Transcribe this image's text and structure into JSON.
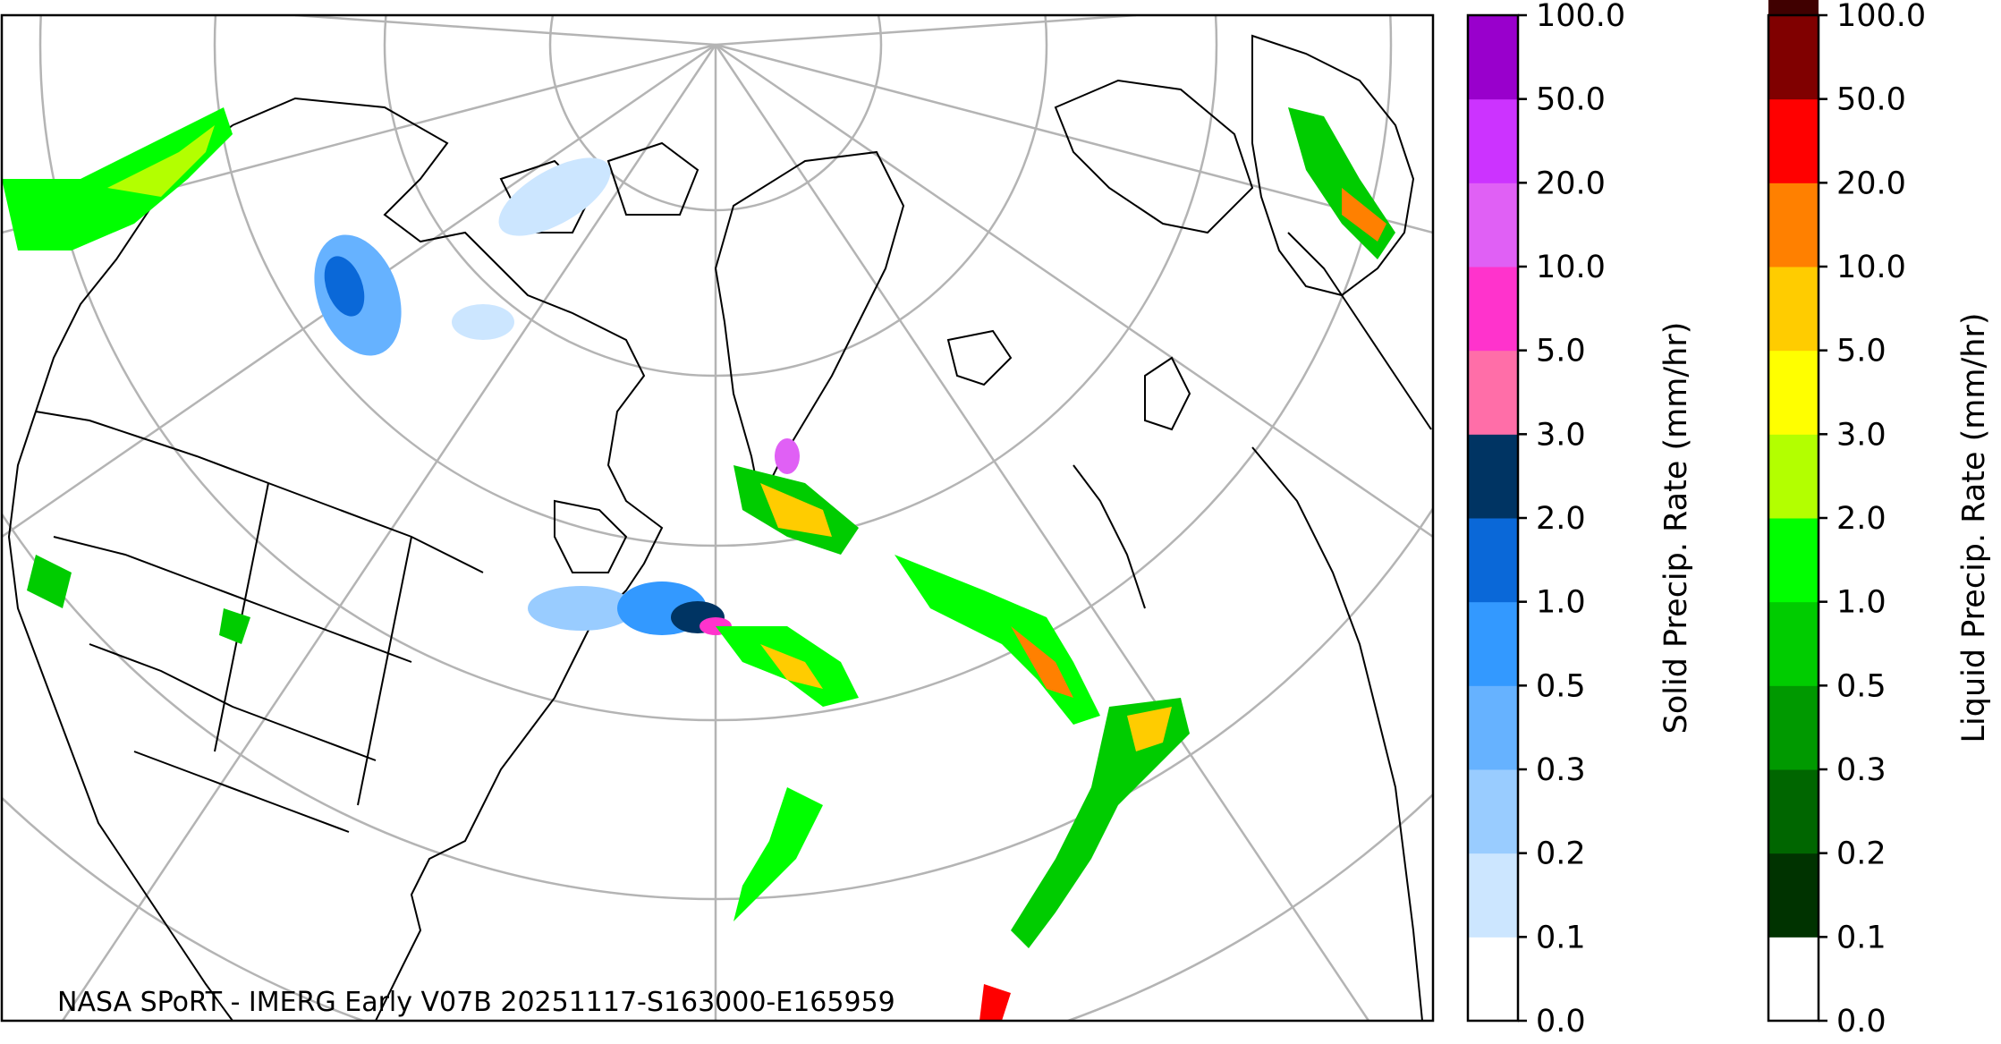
{
  "map": {
    "credit": "NASA SPoRT - IMERG Early V07B 20251117-S163000-E165959",
    "graticule_color": "#b4b4b4",
    "coastline_color": "#000000"
  },
  "solid_colorbar": {
    "label": "Solid Precip. Rate (mm/hr)",
    "ticks": [
      "0.0",
      "0.1",
      "0.2",
      "0.3",
      "0.5",
      "1.0",
      "2.0",
      "3.0",
      "5.0",
      "10.0",
      "20.0",
      "50.0",
      "100.0"
    ],
    "colors": [
      "#ffffff",
      "#cce6ff",
      "#99ccff",
      "#66b2ff",
      "#3399ff",
      "#0a68d8",
      "#003463",
      "#ff6ea8",
      "#ff33cc",
      "#e060f5",
      "#cc33ff",
      "#9900cc"
    ]
  },
  "liquid_colorbar": {
    "label": "Liquid Precip. Rate (mm/hr)",
    "ticks": [
      "0.0",
      "0.1",
      "0.2",
      "0.3",
      "0.5",
      "1.0",
      "2.0",
      "3.0",
      "5.0",
      "10.0",
      "20.0",
      "50.0",
      "100.0"
    ],
    "colors": [
      "#ffffff",
      "#003300",
      "#006600",
      "#009900",
      "#00cc00",
      "#00ff00",
      "#b3ff00",
      "#ffff00",
      "#ffcc00",
      "#ff8000",
      "#ff0000",
      "#800000",
      "#400000"
    ]
  }
}
